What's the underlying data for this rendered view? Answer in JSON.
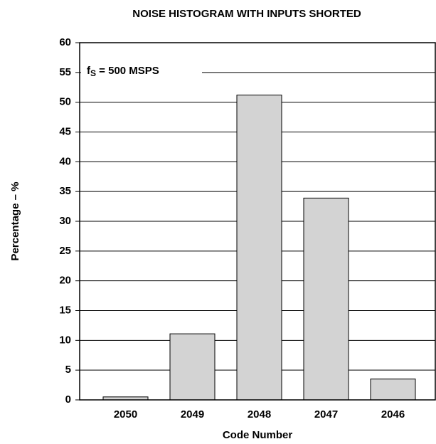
{
  "chart_data": {
    "type": "bar",
    "title": "NOISE HISTOGRAM WITH INPUTS SHORTED",
    "x_label": "Code Number",
    "y_label": "Percentage – %",
    "annotation": {
      "main": "f",
      "subscript": "S",
      "suffix": " = 500 MSPS"
    },
    "categories": [
      "2050",
      "2049",
      "2048",
      "2047",
      "2046"
    ],
    "values": [
      0.5,
      11.1,
      51.2,
      33.9,
      3.5
    ],
    "color": "#d3d3d3",
    "ylim": [
      0,
      60
    ],
    "yticks": [
      0,
      5,
      10,
      15,
      20,
      25,
      30,
      35,
      40,
      45,
      50,
      55,
      60
    ],
    "grid": true
  }
}
